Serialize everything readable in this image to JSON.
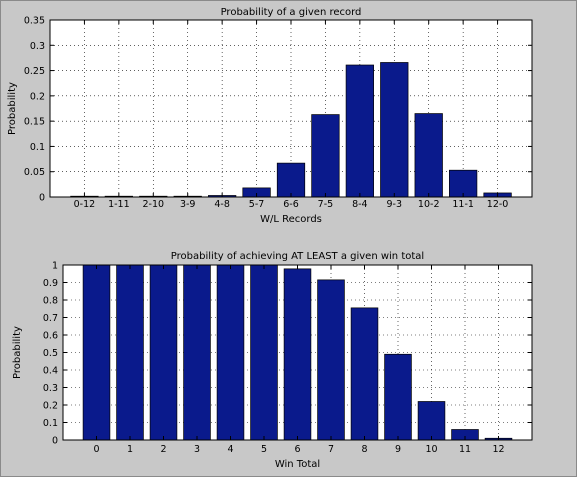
{
  "figure": {
    "background": "#c8c8c8",
    "axes_background": "#ffffff",
    "bar_color": "#0a1a8c"
  },
  "chart_data": [
    {
      "type": "bar",
      "title": "Probability of a given record",
      "xlabel": "W/L Records",
      "ylabel": "Probability",
      "categories": [
        "0-12",
        "1-11",
        "2-10",
        "3-9",
        "4-8",
        "5-7",
        "6-6",
        "7-5",
        "8-4",
        "9-3",
        "10-2",
        "11-1",
        "12-0"
      ],
      "values": [
        0.0002,
        0.0003,
        0.0004,
        0.0006,
        0.003,
        0.018,
        0.067,
        0.163,
        0.261,
        0.266,
        0.165,
        0.053,
        0.008
      ],
      "ylim": [
        0,
        0.35
      ],
      "yticks": [
        0,
        0.05,
        0.1,
        0.15,
        0.2,
        0.25,
        0.3,
        0.35
      ],
      "ytick_labels": [
        "0",
        "0.05",
        "0.1",
        "0.15",
        "0.2",
        "0.25",
        "0.3",
        "0.35"
      ],
      "grid": true
    },
    {
      "type": "bar",
      "title": "Probability of achieving AT LEAST a given win total",
      "xlabel": "Win Total",
      "ylabel": "Probability",
      "categories": [
        "0",
        "1",
        "2",
        "3",
        "4",
        "5",
        "6",
        "7",
        "8",
        "9",
        "10",
        "11",
        "12"
      ],
      "values": [
        1,
        1,
        1,
        1,
        1,
        1,
        0.978,
        0.915,
        0.755,
        0.49,
        0.22,
        0.06,
        0.01
      ],
      "ylim": [
        0,
        1
      ],
      "yticks": [
        0,
        0.1,
        0.2,
        0.3,
        0.4,
        0.5,
        0.6,
        0.7,
        0.8,
        0.9,
        1
      ],
      "ytick_labels": [
        "0",
        "0.1",
        "0.2",
        "0.3",
        "0.4",
        "0.5",
        "0.6",
        "0.7",
        "0.8",
        "0.9",
        "1"
      ],
      "grid": true
    }
  ]
}
